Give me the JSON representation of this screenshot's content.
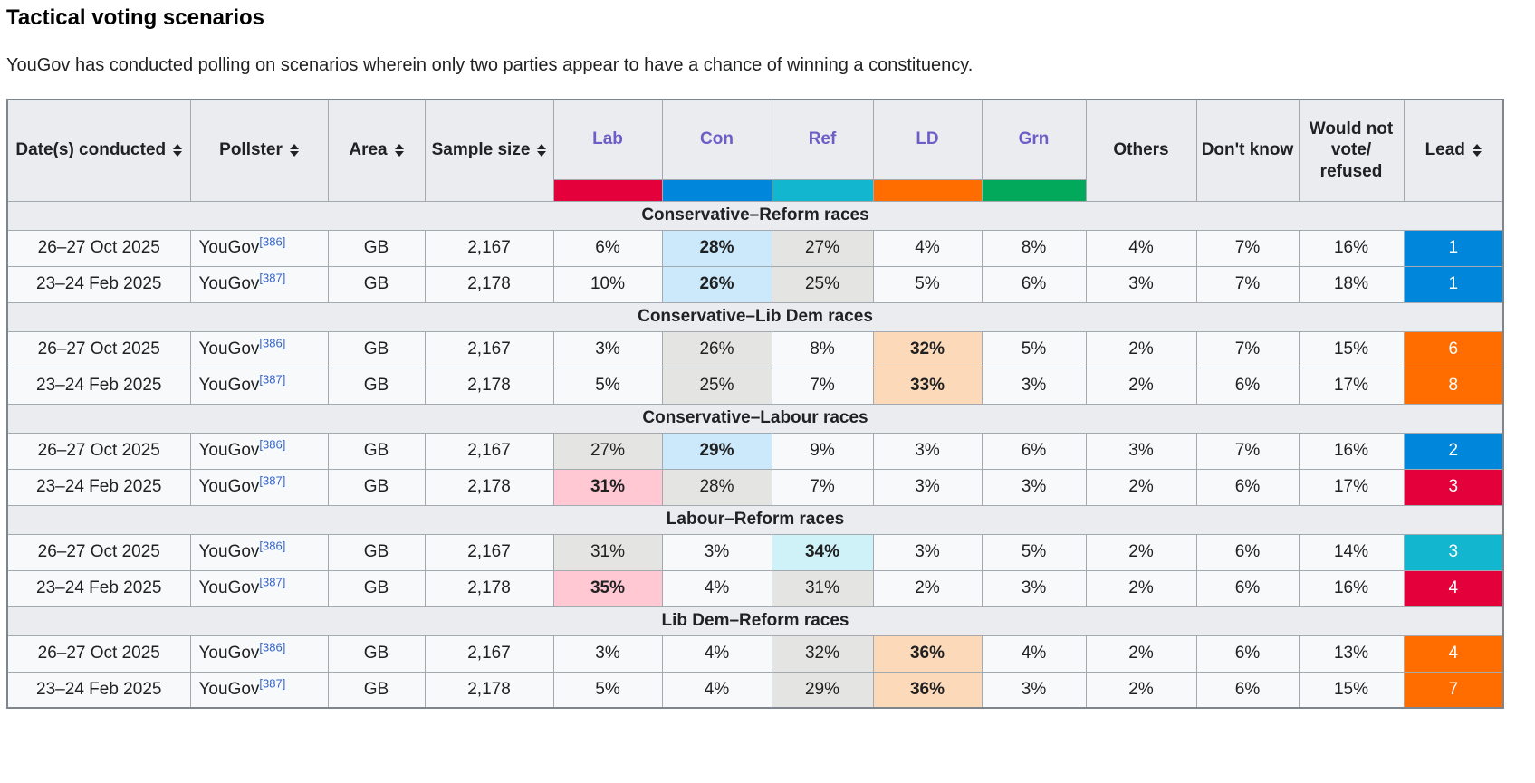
{
  "page": {
    "title": "Tactical voting scenarios",
    "intro": "YouGov has conducted polling on scenarios wherein only two parties appear to have a chance of winning a constituency."
  },
  "table": {
    "colors": {
      "lab": "#E4003B",
      "con": "#0087DC",
      "ref": "#12B6CF",
      "ld": "#FF6C00",
      "grn": "#02A95B",
      "win_lab": "#FFC8D3",
      "win_con": "#CCE9FB",
      "win_ref": "#CFF2F8",
      "win_ld": "#FCD9B8",
      "second_place": "#E4E5E2",
      "link": "#3366CC",
      "visited_link": "#6B5EC7"
    },
    "headers": {
      "dates": "Date(s) conducted",
      "pollster": "Pollster",
      "area": "Area",
      "sample": "Sample size",
      "others": "Others",
      "dont_know": "Don't know",
      "would_not_vote": "Would not vote/ refused",
      "lead": "Lead"
    },
    "parties": [
      {
        "key": "lab",
        "label": "Lab"
      },
      {
        "key": "con",
        "label": "Con"
      },
      {
        "key": "ref",
        "label": "Ref"
      },
      {
        "key": "ld",
        "label": "LD"
      },
      {
        "key": "grn",
        "label": "Grn"
      }
    ],
    "sections": [
      {
        "title": "Conservative–Reform races",
        "rows": [
          {
            "dates": "26–27 Oct 2025",
            "pollster": "YouGov",
            "citation": "[386]",
            "area": "GB",
            "sample": "2,167",
            "values": [
              {
                "v": "6%"
              },
              {
                "v": "28%",
                "hl": "con"
              },
              {
                "v": "27%",
                "hl": "second"
              },
              {
                "v": "4%"
              },
              {
                "v": "8%"
              },
              {
                "v": "4%"
              },
              {
                "v": "7%"
              },
              {
                "v": "16%"
              }
            ],
            "lead": {
              "v": "1",
              "party": "con"
            }
          },
          {
            "dates": "23–24 Feb 2025",
            "pollster": "YouGov",
            "citation": "[387]",
            "area": "GB",
            "sample": "2,178",
            "values": [
              {
                "v": "10%"
              },
              {
                "v": "26%",
                "hl": "con"
              },
              {
                "v": "25%",
                "hl": "second"
              },
              {
                "v": "5%"
              },
              {
                "v": "6%"
              },
              {
                "v": "3%"
              },
              {
                "v": "7%"
              },
              {
                "v": "18%"
              }
            ],
            "lead": {
              "v": "1",
              "party": "con"
            }
          }
        ]
      },
      {
        "title": "Conservative–Lib Dem races",
        "rows": [
          {
            "dates": "26–27 Oct 2025",
            "pollster": "YouGov",
            "citation": "[386]",
            "area": "GB",
            "sample": "2,167",
            "values": [
              {
                "v": "3%"
              },
              {
                "v": "26%",
                "hl": "second"
              },
              {
                "v": "8%"
              },
              {
                "v": "32%",
                "hl": "ld"
              },
              {
                "v": "5%"
              },
              {
                "v": "2%"
              },
              {
                "v": "7%"
              },
              {
                "v": "15%"
              }
            ],
            "lead": {
              "v": "6",
              "party": "ld"
            }
          },
          {
            "dates": "23–24 Feb 2025",
            "pollster": "YouGov",
            "citation": "[387]",
            "area": "GB",
            "sample": "2,178",
            "values": [
              {
                "v": "5%"
              },
              {
                "v": "25%",
                "hl": "second"
              },
              {
                "v": "7%"
              },
              {
                "v": "33%",
                "hl": "ld"
              },
              {
                "v": "3%"
              },
              {
                "v": "2%"
              },
              {
                "v": "6%"
              },
              {
                "v": "17%"
              }
            ],
            "lead": {
              "v": "8",
              "party": "ld"
            }
          }
        ]
      },
      {
        "title": "Conservative–Labour races",
        "rows": [
          {
            "dates": "26–27 Oct 2025",
            "pollster": "YouGov",
            "citation": "[386]",
            "area": "GB",
            "sample": "2,167",
            "values": [
              {
                "v": "27%",
                "hl": "second"
              },
              {
                "v": "29%",
                "hl": "con"
              },
              {
                "v": "9%"
              },
              {
                "v": "3%"
              },
              {
                "v": "6%"
              },
              {
                "v": "3%"
              },
              {
                "v": "7%"
              },
              {
                "v": "16%"
              }
            ],
            "lead": {
              "v": "2",
              "party": "con"
            }
          },
          {
            "dates": "23–24 Feb 2025",
            "pollster": "YouGov",
            "citation": "[387]",
            "area": "GB",
            "sample": "2,178",
            "values": [
              {
                "v": "31%",
                "hl": "lab"
              },
              {
                "v": "28%",
                "hl": "second"
              },
              {
                "v": "7%"
              },
              {
                "v": "3%"
              },
              {
                "v": "3%"
              },
              {
                "v": "2%"
              },
              {
                "v": "6%"
              },
              {
                "v": "17%"
              }
            ],
            "lead": {
              "v": "3",
              "party": "lab"
            }
          }
        ]
      },
      {
        "title": "Labour–Reform races",
        "rows": [
          {
            "dates": "26–27 Oct 2025",
            "pollster": "YouGov",
            "citation": "[386]",
            "area": "GB",
            "sample": "2,167",
            "values": [
              {
                "v": "31%",
                "hl": "second"
              },
              {
                "v": "3%"
              },
              {
                "v": "34%",
                "hl": "ref"
              },
              {
                "v": "3%"
              },
              {
                "v": "5%"
              },
              {
                "v": "2%"
              },
              {
                "v": "6%"
              },
              {
                "v": "14%"
              }
            ],
            "lead": {
              "v": "3",
              "party": "ref"
            }
          },
          {
            "dates": "23–24 Feb 2025",
            "pollster": "YouGov",
            "citation": "[387]",
            "area": "GB",
            "sample": "2,178",
            "values": [
              {
                "v": "35%",
                "hl": "lab"
              },
              {
                "v": "4%"
              },
              {
                "v": "31%",
                "hl": "second"
              },
              {
                "v": "2%"
              },
              {
                "v": "3%"
              },
              {
                "v": "2%"
              },
              {
                "v": "6%"
              },
              {
                "v": "16%"
              }
            ],
            "lead": {
              "v": "4",
              "party": "lab"
            }
          }
        ]
      },
      {
        "title": "Lib Dem–Reform races",
        "rows": [
          {
            "dates": "26–27 Oct 2025",
            "pollster": "YouGov",
            "citation": "[386]",
            "area": "GB",
            "sample": "2,167",
            "values": [
              {
                "v": "3%"
              },
              {
                "v": "4%"
              },
              {
                "v": "32%",
                "hl": "second"
              },
              {
                "v": "36%",
                "hl": "ld"
              },
              {
                "v": "4%"
              },
              {
                "v": "2%"
              },
              {
                "v": "6%"
              },
              {
                "v": "13%"
              }
            ],
            "lead": {
              "v": "4",
              "party": "ld"
            }
          },
          {
            "dates": "23–24 Feb 2025",
            "pollster": "YouGov",
            "citation": "[387]",
            "area": "GB",
            "sample": "2,178",
            "values": [
              {
                "v": "5%"
              },
              {
                "v": "4%"
              },
              {
                "v": "29%",
                "hl": "second"
              },
              {
                "v": "36%",
                "hl": "ld"
              },
              {
                "v": "3%"
              },
              {
                "v": "2%"
              },
              {
                "v": "6%"
              },
              {
                "v": "15%"
              }
            ],
            "lead": {
              "v": "7",
              "party": "ld"
            }
          }
        ]
      }
    ]
  }
}
